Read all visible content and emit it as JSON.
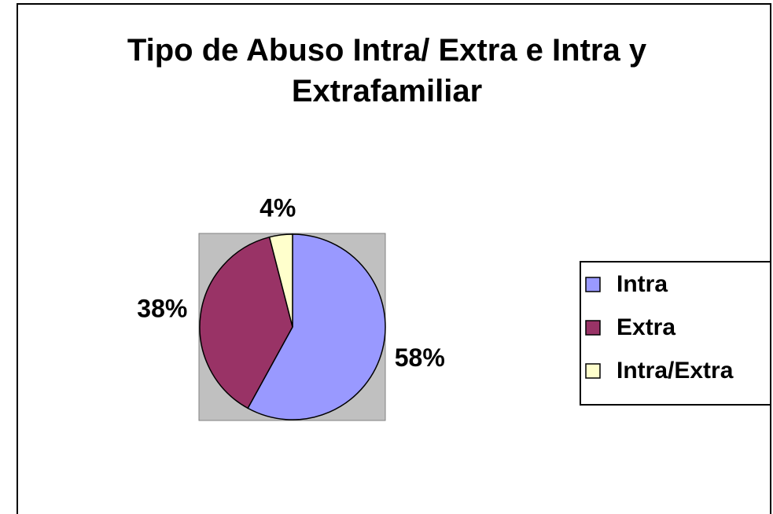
{
  "chart_data": {
    "type": "pie",
    "title": "Tipo de Abuso Intra/ Extra e Intra y Extrafamiliar",
    "categories": [
      "Intra",
      "Extra",
      "Intra/Extra"
    ],
    "values": [
      58,
      38,
      4
    ],
    "value_labels": [
      "58%",
      "38%",
      "4%"
    ],
    "colors": [
      "#9999ff",
      "#993366",
      "#ffffcc"
    ],
    "legend": "right"
  }
}
